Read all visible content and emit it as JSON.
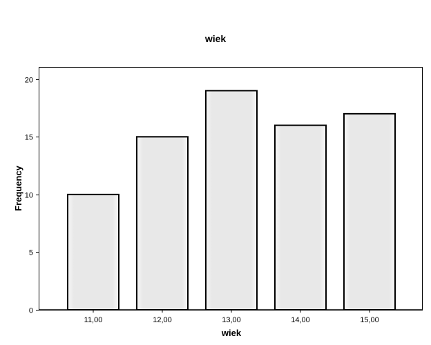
{
  "chart_data": {
    "type": "bar",
    "title": "wiek",
    "xlabel": "wiek",
    "ylabel": "Frequency",
    "categories": [
      "11,00",
      "12,00",
      "13,00",
      "14,00",
      "15,00"
    ],
    "values": [
      10,
      15,
      19,
      16,
      17
    ],
    "ylim": [
      0,
      21
    ],
    "yticks": [
      0,
      5,
      10,
      15,
      20
    ],
    "grid": false,
    "colors": {
      "bar_fill": "#e8e8e8",
      "bar_stroke": "#000000",
      "plot_background": "#ffffff",
      "frame": "#000000"
    }
  }
}
